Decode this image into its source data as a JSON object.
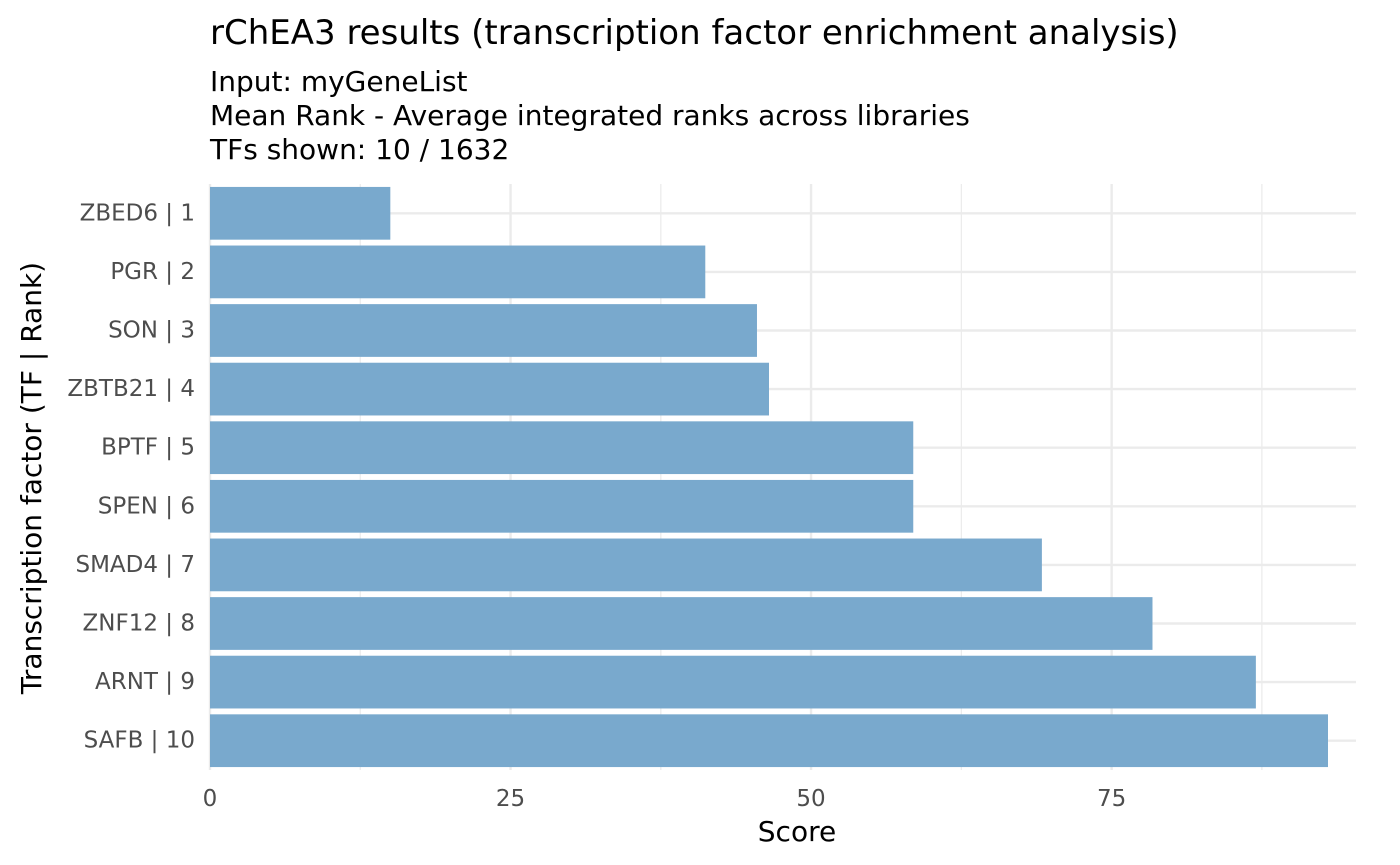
{
  "chart_data": {
    "type": "bar",
    "orientation": "horizontal",
    "title": "rChEA3 results (transcription factor enrichment analysis)",
    "subtitle_lines": [
      "Input: myGeneList",
      "Mean Rank - Average integrated ranks across libraries",
      "TFs shown: 10 / 1632"
    ],
    "xlabel": "Score",
    "ylabel": "Transcription factor (TF | Rank)",
    "categories": [
      "ZBED6 | 1",
      "PGR | 2",
      "SON | 3",
      "ZBTB21 | 4",
      "BPTF | 5",
      "SPEN | 6",
      "SMAD4 | 7",
      "ZNF12 | 8",
      "ARNT | 9",
      "SAFB | 10"
    ],
    "values": [
      15,
      41.2,
      45.5,
      46.5,
      58.5,
      58.5,
      69.2,
      78.4,
      87,
      93
    ],
    "xlim": [
      0,
      93
    ],
    "xticks": [
      0,
      25,
      50,
      75
    ],
    "grid": true,
    "bar_color": "#79A9CD",
    "grid_color": "#EBEBEB"
  }
}
